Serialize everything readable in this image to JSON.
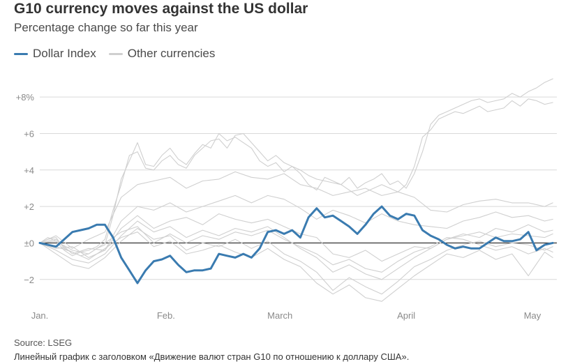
{
  "header": {
    "title": "G10 currency moves against the US dollar",
    "subtitle": "Percentage change so far this year"
  },
  "legend": {
    "items": [
      {
        "label": "Dollar Index",
        "color": "#3a7bb0"
      },
      {
        "label": "Other currencies",
        "color": "#cfcfcf"
      }
    ]
  },
  "footer": {
    "source": "Source: LSEG",
    "caption": "Линейный график с заголовком «Движение валют стран G10 по отношению к доллару США»."
  },
  "chart_data": {
    "type": "line",
    "title": "G10 currency moves against the US dollar",
    "subtitle": "Percentage change so far this year",
    "x_ticks": [
      "Jan.",
      "Feb.",
      "March",
      "April",
      "May"
    ],
    "x_tick_days": [
      0,
      31,
      59,
      90,
      121
    ],
    "x_range": [
      0,
      127
    ],
    "y_ticks": [
      -2,
      0,
      2,
      4,
      6,
      8
    ],
    "y_tick_labels": [
      "−2",
      "±0",
      "+2",
      "+4",
      "+6",
      "+8%"
    ],
    "ylim": [
      -3.5,
      9
    ],
    "grid": true,
    "legend_position": "top-left",
    "series": [
      {
        "name": "Dollar Index",
        "color": "#3a7bb0",
        "highlight": true,
        "x": [
          0,
          2,
          4,
          6,
          8,
          10,
          12,
          14,
          16,
          18,
          20,
          22,
          24,
          26,
          28,
          30,
          32,
          34,
          36,
          38,
          40,
          42,
          44,
          46,
          48,
          50,
          52,
          54,
          56,
          58,
          60,
          62,
          64,
          66,
          68,
          70,
          72,
          74,
          76,
          78,
          80,
          82,
          84,
          86,
          88,
          90,
          92,
          94,
          96,
          98,
          100,
          102,
          104,
          106,
          108,
          110,
          112,
          114,
          116,
          118,
          120,
          122,
          124,
          126
        ],
        "y": [
          0,
          -0.1,
          -0.2,
          0.2,
          0.6,
          0.7,
          0.8,
          1.0,
          1.0,
          0.3,
          -0.8,
          -1.5,
          -2.2,
          -1.5,
          -1.0,
          -0.9,
          -0.7,
          -1.2,
          -1.6,
          -1.5,
          -1.5,
          -1.4,
          -0.6,
          -0.7,
          -0.8,
          -0.6,
          -0.8,
          -0.3,
          0.6,
          0.7,
          0.5,
          0.7,
          0.3,
          1.4,
          1.9,
          1.4,
          1.5,
          1.2,
          0.9,
          0.5,
          1.0,
          1.6,
          2.0,
          1.5,
          1.3,
          1.6,
          1.5,
          0.7,
          0.4,
          0.2,
          -0.1,
          -0.3,
          -0.2,
          -0.3,
          -0.3,
          0.0,
          0.3,
          0.1,
          0.1,
          0.2,
          0.6,
          -0.4,
          -0.1,
          0.0
        ]
      },
      {
        "name": "",
        "color": "#cfcfcf",
        "x": [
          0,
          2,
          4,
          6,
          8,
          10,
          12,
          14,
          16,
          18,
          20,
          22,
          24,
          26,
          28,
          30,
          32,
          34,
          36,
          38,
          40,
          42,
          44,
          46,
          48,
          50,
          52,
          54,
          56,
          58,
          60,
          62,
          64,
          66,
          68,
          70,
          72,
          74,
          76,
          78,
          80,
          82,
          84,
          86,
          88,
          90,
          92,
          94,
          96,
          98,
          100,
          102,
          104,
          106,
          108,
          110,
          112,
          114,
          116,
          118,
          120,
          122,
          124,
          126
        ],
        "y": [
          0,
          0.2,
          0.3,
          -0.3,
          -0.5,
          -0.7,
          -0.6,
          -0.3,
          -0.1,
          1.5,
          3.5,
          4.5,
          5.5,
          4.3,
          4.2,
          4.8,
          5.2,
          4.6,
          4.3,
          4.9,
          5.4,
          5.2,
          6.0,
          5.6,
          5.8,
          5.5,
          5.2,
          4.5,
          4.2,
          4.4,
          3.9,
          4.2,
          3.8,
          3.2,
          2.9,
          3.6,
          3.4,
          3.2,
          3.6,
          3.0,
          3.3,
          3.5,
          3.8,
          3.2,
          3.4,
          3.0,
          3.8,
          5.0,
          6.5,
          7.0,
          7.2,
          7.4,
          7.6,
          7.8,
          7.9,
          7.7,
          7.8,
          7.9,
          8.2,
          8.0,
          8.3,
          8.5,
          8.8,
          9.0
        ]
      },
      {
        "name": "",
        "color": "#cfcfcf",
        "x": [
          0,
          2,
          4,
          6,
          8,
          10,
          12,
          14,
          16,
          18,
          20,
          22,
          24,
          26,
          28,
          30,
          32,
          34,
          36,
          38,
          40,
          42,
          44,
          46,
          48,
          50,
          52,
          54,
          56,
          58,
          60,
          62,
          64,
          66,
          68,
          70,
          72,
          74,
          76,
          78,
          80,
          82,
          84,
          86,
          88,
          90,
          92,
          94,
          96,
          98,
          100,
          102,
          104,
          106,
          108,
          110,
          112,
          114,
          116,
          118,
          120,
          122,
          124,
          126
        ],
        "y": [
          0,
          0.3,
          0.1,
          -0.4,
          -0.7,
          -0.5,
          -0.4,
          -0.2,
          0.2,
          1.8,
          3.2,
          4.8,
          5.0,
          4.1,
          4.0,
          4.5,
          4.8,
          4.3,
          4.1,
          4.8,
          5.2,
          5.6,
          5.7,
          5.2,
          5.9,
          6.0,
          5.5,
          5.0,
          4.5,
          4.8,
          4.4,
          4.2,
          4.0,
          3.7,
          3.5,
          3.4,
          3.3,
          3.2,
          2.9,
          2.6,
          2.8,
          3.0,
          3.2,
          3.0,
          2.8,
          3.2,
          4.2,
          5.8,
          6.2,
          6.8,
          7.0,
          7.2,
          7.1,
          7.3,
          7.5,
          7.2,
          7.3,
          7.4,
          7.8,
          7.5,
          7.9,
          7.8,
          7.6,
          7.7
        ]
      },
      {
        "name": "",
        "color": "#cfcfcf",
        "x": [
          0,
          4,
          8,
          12,
          16,
          20,
          24,
          28,
          32,
          36,
          40,
          44,
          48,
          52,
          56,
          60,
          64,
          68,
          72,
          76,
          80,
          84,
          88,
          92,
          96,
          100,
          104,
          108,
          112,
          116,
          120,
          124,
          126
        ],
        "y": [
          0,
          0.4,
          -0.3,
          0.2,
          0.6,
          2.5,
          3.2,
          3.4,
          3.6,
          3.0,
          3.4,
          3.5,
          3.9,
          3.6,
          3.5,
          3.8,
          3.2,
          3.0,
          2.6,
          2.8,
          3.0,
          2.6,
          2.8,
          2.5,
          1.8,
          1.7,
          2.1,
          2.3,
          2.4,
          2.2,
          2.2,
          2.0,
          2.2
        ]
      },
      {
        "name": "",
        "color": "#cfcfcf",
        "x": [
          0,
          4,
          8,
          12,
          16,
          20,
          24,
          28,
          32,
          36,
          40,
          44,
          48,
          52,
          56,
          60,
          64,
          68,
          72,
          76,
          80,
          84,
          88,
          92,
          96,
          100,
          104,
          108,
          112,
          116,
          120,
          124,
          126
        ],
        "y": [
          0,
          -0.3,
          -0.2,
          -0.8,
          -0.4,
          1.2,
          2.0,
          1.8,
          2.2,
          1.7,
          2.0,
          2.3,
          2.6,
          2.2,
          2.6,
          2.4,
          1.9,
          1.3,
          1.8,
          1.5,
          1.1,
          1.6,
          1.2,
          1.0,
          0.9,
          0.8,
          1.2,
          1.4,
          1.7,
          1.4,
          1.5,
          1.2,
          1.3
        ]
      },
      {
        "name": "",
        "color": "#cfcfcf",
        "x": [
          0,
          4,
          8,
          12,
          16,
          20,
          24,
          28,
          32,
          36,
          40,
          44,
          48,
          52,
          56,
          60,
          64,
          68,
          72,
          76,
          80,
          84,
          88,
          92,
          96,
          100,
          104,
          108,
          112,
          116,
          120,
          124,
          126
        ],
        "y": [
          0,
          0.2,
          -0.6,
          -0.3,
          -0.4,
          0.8,
          1.5,
          0.8,
          1.2,
          1.4,
          1.0,
          1.6,
          1.3,
          1.1,
          1.3,
          0.9,
          0.5,
          0.3,
          -0.6,
          -0.8,
          -0.4,
          -1.0,
          -0.6,
          -0.2,
          -0.3,
          0.2,
          0.5,
          0.3,
          0.8,
          0.6,
          1.0,
          0.6,
          0.7
        ]
      },
      {
        "name": "",
        "color": "#cfcfcf",
        "x": [
          0,
          4,
          8,
          12,
          16,
          20,
          24,
          28,
          32,
          36,
          40,
          44,
          48,
          52,
          56,
          60,
          64,
          68,
          72,
          76,
          80,
          84,
          88,
          92,
          96,
          100,
          104,
          108,
          112,
          116,
          120,
          124,
          126
        ],
        "y": [
          0,
          -0.4,
          -0.9,
          -1.1,
          -0.6,
          0.4,
          1.2,
          0.6,
          0.9,
          0.3,
          0.7,
          0.4,
          0.8,
          0.6,
          0.9,
          0.3,
          -0.3,
          -0.8,
          -1.6,
          -1.2,
          -1.7,
          -2.0,
          -1.4,
          -0.8,
          -0.3,
          0.2,
          0.4,
          0.6,
          0.3,
          0.5,
          0.4,
          0.3,
          0.5
        ]
      },
      {
        "name": "",
        "color": "#cfcfcf",
        "x": [
          0,
          4,
          8,
          12,
          16,
          20,
          24,
          28,
          32,
          36,
          40,
          44,
          48,
          52,
          56,
          60,
          64,
          68,
          72,
          76,
          80,
          84,
          88,
          92,
          96,
          100,
          104,
          108,
          112,
          116,
          120,
          124,
          126
        ],
        "y": [
          0,
          -0.6,
          -1.2,
          -1.4,
          -0.8,
          0.1,
          0.8,
          0.2,
          0.4,
          -0.4,
          0.0,
          -0.2,
          0.2,
          -0.3,
          0.1,
          -0.6,
          -1.0,
          -1.6,
          -2.6,
          -1.9,
          -2.4,
          -2.8,
          -2.1,
          -1.3,
          -0.9,
          -0.4,
          -0.1,
          0.1,
          -0.2,
          0.0,
          -0.1,
          -0.4,
          -0.2
        ]
      },
      {
        "name": "",
        "color": "#cfcfcf",
        "x": [
          0,
          4,
          8,
          12,
          16,
          20,
          24,
          28,
          32,
          36,
          40,
          44,
          48,
          52,
          56,
          60,
          64,
          68,
          72,
          76,
          80,
          84,
          88,
          92,
          96,
          100,
          104,
          108,
          112,
          116,
          120,
          124,
          126
        ],
        "y": [
          0,
          -0.2,
          -0.5,
          -0.9,
          -0.3,
          0.3,
          0.6,
          -0.2,
          0.1,
          -0.6,
          -0.4,
          -0.1,
          -0.5,
          -0.8,
          -0.3,
          -0.9,
          -1.3,
          -2.2,
          -2.8,
          -2.3,
          -3.0,
          -3.2,
          -2.5,
          -1.8,
          -1.2,
          -0.6,
          -0.8,
          -0.4,
          -0.9,
          -0.6,
          -1.8,
          -0.5,
          -0.8
        ]
      },
      {
        "name": "",
        "color": "#cfcfcf",
        "x": [
          0,
          4,
          8,
          12,
          16,
          20,
          24,
          28,
          32,
          36,
          40,
          44,
          48,
          52,
          56,
          60,
          64,
          68,
          72,
          76,
          80,
          84,
          88,
          92,
          96,
          100,
          104,
          108,
          112,
          116,
          120,
          124,
          126
        ],
        "y": [
          0,
          0.1,
          -0.4,
          -0.6,
          0.0,
          0.6,
          0.9,
          0.0,
          0.5,
          0.0,
          0.4,
          0.2,
          0.6,
          0.4,
          0.7,
          0.2,
          -0.2,
          -0.6,
          -1.2,
          -0.9,
          -1.4,
          -1.6,
          -1.0,
          -0.5,
          -0.2,
          0.3,
          0.2,
          -0.1,
          -0.4,
          -0.2,
          -0.6,
          -0.3,
          -0.5
        ]
      }
    ]
  }
}
